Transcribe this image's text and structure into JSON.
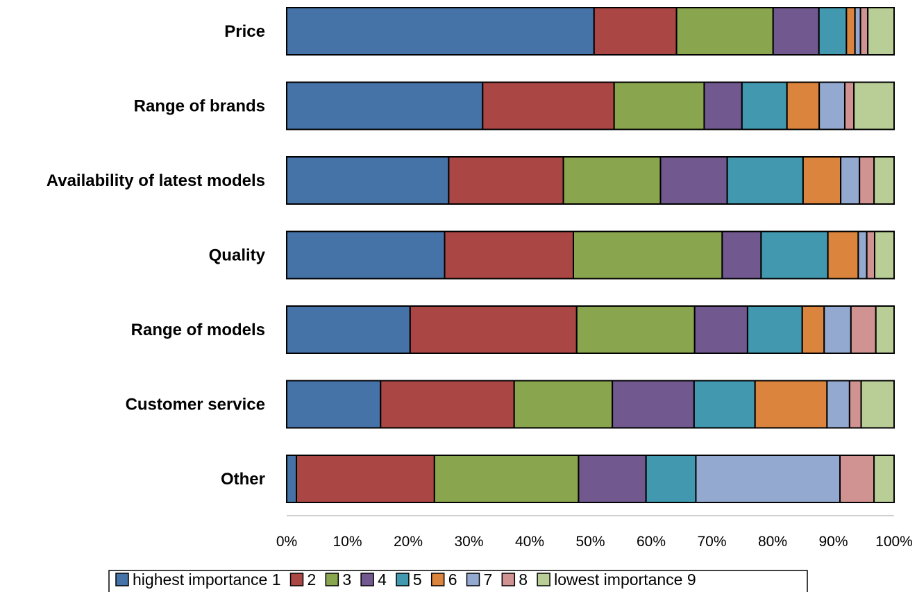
{
  "chart_data": {
    "type": "bar",
    "orientation": "horizontal",
    "stacked": "percent",
    "categories": [
      "Price",
      "Range of brands",
      "Availability of latest models",
      "Quality",
      "Range of models",
      "Customer service",
      "Other"
    ],
    "series": [
      {
        "name": "highest importance 1",
        "color": "#4572A7",
        "values": [
          50.3,
          32.2,
          26.7,
          26.0,
          20.3,
          15.4,
          1.6
        ]
      },
      {
        "name": "2",
        "color": "#AA4643",
        "values": [
          13.5,
          21.6,
          18.9,
          21.2,
          27.4,
          21.9,
          22.7
        ]
      },
      {
        "name": "3",
        "color": "#89A54E",
        "values": [
          15.8,
          14.8,
          16.0,
          24.5,
          19.4,
          16.1,
          23.7
        ]
      },
      {
        "name": "4",
        "color": "#71588F",
        "values": [
          7.5,
          6.2,
          11.0,
          6.4,
          8.7,
          13.4,
          11.1
        ]
      },
      {
        "name": "5",
        "color": "#4198AF",
        "values": [
          4.5,
          7.4,
          12.5,
          11.0,
          9.0,
          10.0,
          8.2
        ]
      },
      {
        "name": "6",
        "color": "#DB843D",
        "values": [
          1.4,
          5.3,
          6.2,
          5.0,
          3.6,
          11.8,
          0.0
        ]
      },
      {
        "name": "7",
        "color": "#93A9CF",
        "values": [
          0.9,
          4.2,
          3.1,
          1.4,
          4.4,
          3.7,
          23.7
        ]
      },
      {
        "name": "8",
        "color": "#D19392",
        "values": [
          1.2,
          1.5,
          2.4,
          1.3,
          4.1,
          1.9,
          5.6
        ]
      },
      {
        "name": "lowest importance 9",
        "color": "#B9CD96",
        "values": [
          4.3,
          6.6,
          3.3,
          3.2,
          3.0,
          5.4,
          3.3
        ]
      }
    ],
    "xlim": [
      0,
      100
    ],
    "xticks": [
      "0%",
      "10%",
      "20%",
      "30%",
      "40%",
      "50%",
      "60%",
      "70%",
      "80%",
      "90%",
      "100%"
    ],
    "grid": false,
    "legend_position": "bottom"
  }
}
